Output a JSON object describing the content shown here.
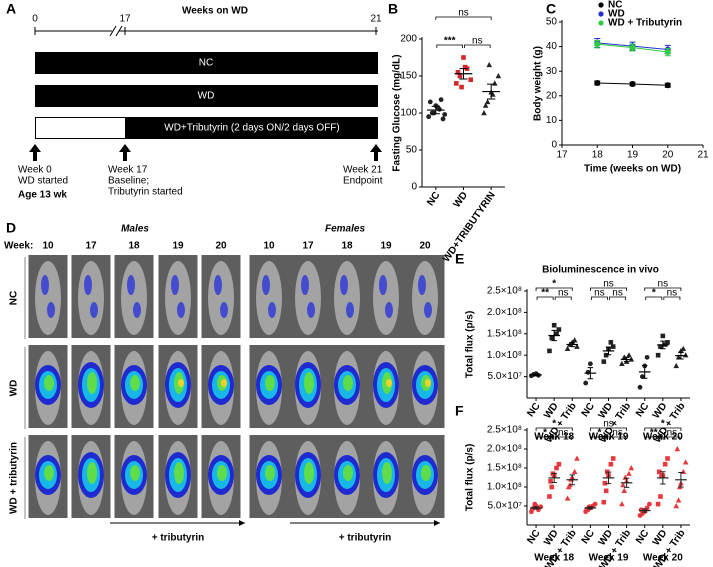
{
  "panel_a": {
    "label": "A",
    "title": "Weeks on WD",
    "ticks": [
      "0",
      "17",
      "21"
    ],
    "bars": [
      "NC",
      "WD",
      "WD+Tributyrin (2 days ON/2 days OFF)"
    ],
    "events": [
      {
        "lines": [
          "Week 0",
          "WD started"
        ],
        "note": "Age 13 wk"
      },
      {
        "lines": [
          "Week 17",
          "Baseline;",
          "Tributyrin started"
        ]
      },
      {
        "lines": [
          "Week 21",
          "Endpoint"
        ]
      }
    ]
  },
  "panel_d": {
    "label": "D",
    "week_label": "Week:",
    "sexes": [
      "Males",
      "Females"
    ],
    "weeks": [
      "10",
      "17",
      "18",
      "19",
      "20"
    ],
    "rows": [
      "NC",
      "WD",
      "WD + tributyrin"
    ],
    "treatment": "+ tributyrin"
  },
  "chart_data": [
    {
      "panel": "B",
      "type": "dot",
      "ylabel": "Fasting Glucose (mg/dL)",
      "categories": [
        "NC",
        "WD",
        "WD+TRIBUTYRIN"
      ],
      "values": [
        104,
        153,
        129
      ],
      "errors": [
        5,
        7,
        10
      ],
      "points": [
        [
          95,
          100,
          110,
          105,
          92,
          115,
          100,
          108,
          118,
          98
        ],
        [
          140,
          150,
          175,
          160,
          145,
          155,
          135,
          162
        ],
        [
          100,
          115,
          128,
          140,
          150,
          110,
          165,
          125
        ]
      ],
      "markers": [
        "circle",
        "square",
        "triangle"
      ],
      "point_colors": [
        "#222222",
        "#d62728",
        "#222222"
      ],
      "mean_color": "#000000",
      "ylim": [
        0,
        200
      ],
      "yticks": [
        0,
        50,
        100,
        150,
        200
      ],
      "comparisons": [
        {
          "pair": [
            0,
            1
          ],
          "label": "***"
        },
        {
          "pair": [
            1,
            2
          ],
          "label": "ns"
        },
        {
          "pair": [
            0,
            2
          ],
          "label": "ns"
        }
      ]
    },
    {
      "panel": "C",
      "type": "line",
      "xlabel": "Time (weeks on WD)",
      "ylabel": "Body weight (g)",
      "x": [
        18,
        19,
        20
      ],
      "series": [
        {
          "name": "NC",
          "color": "#000000",
          "values": [
            25.2,
            24.8,
            24.3
          ],
          "errors": [
            0.8,
            0.7,
            0.8
          ]
        },
        {
          "name": "WD",
          "color": "#2233cc",
          "values": [
            41.5,
            40.2,
            38.8
          ],
          "errors": [
            1.8,
            1.6,
            1.7
          ]
        },
        {
          "name": "WD + Tributyrin",
          "color": "#2ecc40",
          "values": [
            41,
            39.6,
            37.8
          ],
          "errors": [
            1.5,
            1.4,
            1.5
          ]
        }
      ],
      "xlim": [
        17,
        21
      ],
      "xticks": [
        17,
        18,
        19,
        20,
        21
      ],
      "ylim": [
        0,
        50
      ],
      "yticks": [
        0,
        10,
        20,
        30,
        40,
        50
      ],
      "legend": "top-right"
    },
    {
      "panel": "E",
      "type": "dot",
      "title": "Bioluminescence in vivo",
      "ylabel": "Total flux (p/s)",
      "categories": [
        "NC",
        "WD",
        "WD + Trib",
        "NC",
        "WD",
        "WD + Trib",
        "NC",
        "WD",
        "WD + Trib"
      ],
      "groups": [
        "Week 18",
        "Week 19",
        "Week 20"
      ],
      "values": [
        54000000,
        146000000,
        125000000,
        58000000,
        110000000,
        90000000,
        61000000,
        124000000,
        99000000
      ],
      "errors": [
        2000000,
        12000000,
        5000000,
        13000000,
        9000000,
        5000000,
        15000000,
        9000000,
        8000000
      ],
      "points": [
        [
          52000000,
          55000000,
          57000000,
          53000000
        ],
        [
          110000000,
          140000000,
          170000000,
          150000000,
          160000000
        ],
        [
          115000000,
          125000000,
          130000000,
          135000000,
          120000000
        ],
        [
          35000000,
          60000000,
          80000000
        ],
        [
          85000000,
          100000000,
          115000000,
          130000000,
          120000000
        ],
        [
          80000000,
          95000000,
          85000000,
          100000000,
          90000000
        ],
        [
          25000000,
          50000000,
          75000000,
          95000000
        ],
        [
          100000000,
          120000000,
          145000000,
          125000000,
          130000000
        ],
        [
          75000000,
          95000000,
          110000000,
          115000000,
          100000000
        ]
      ],
      "markers": [
        "circle",
        "square",
        "triangle",
        "circle",
        "square",
        "triangle",
        "circle",
        "square",
        "triangle"
      ],
      "point_colors": [
        "#222222",
        "#222222",
        "#222222",
        "#222222",
        "#222222",
        "#222222",
        "#222222",
        "#222222",
        "#222222"
      ],
      "mean_color": "#000000",
      "ylim": [
        0,
        250000000
      ],
      "yticks": [
        {
          "value": 50000000,
          "label": "5.0×10⁷"
        },
        {
          "value": 100000000,
          "label": "1.0×10⁸"
        },
        {
          "value": 150000000,
          "label": "1.5×10⁸"
        },
        {
          "value": 200000000,
          "label": "2.0×10⁸"
        },
        {
          "value": 250000000,
          "label": "2.5×10⁸"
        }
      ],
      "comparisons": [
        {
          "pair": [
            0,
            2
          ],
          "label": "*"
        },
        {
          "pair": [
            0,
            1
          ],
          "label": "**"
        },
        {
          "pair": [
            1,
            2
          ],
          "label": "ns"
        },
        {
          "pair": [
            3,
            5
          ],
          "label": "ns"
        },
        {
          "pair": [
            3,
            4
          ],
          "label": "ns"
        },
        {
          "pair": [
            4,
            5
          ],
          "label": "ns"
        },
        {
          "pair": [
            6,
            8
          ],
          "label": "ns"
        },
        {
          "pair": [
            6,
            7
          ],
          "label": "*"
        },
        {
          "pair": [
            7,
            8
          ],
          "label": "ns"
        }
      ]
    },
    {
      "panel": "F",
      "type": "dot",
      "ylabel": "Total flux (p/s)",
      "categories": [
        "NC",
        "WD",
        "WD + Trib",
        "NC",
        "WD",
        "WD + Trib",
        "NC",
        "WD",
        "WD + Trib"
      ],
      "groups": [
        "Week 18",
        "Week 19",
        "Week 20"
      ],
      "values": [
        45000000,
        124000000,
        119000000,
        45000000,
        124000000,
        111000000,
        38000000,
        124000000,
        119000000
      ],
      "errors": [
        3000000,
        12000000,
        13000000,
        3000000,
        15000000,
        12000000,
        4000000,
        16000000,
        19000000
      ],
      "points": [
        [
          35000000,
          45000000,
          50000000,
          40000000,
          48000000,
          42000000,
          55000000
        ],
        [
          75000000,
          100000000,
          130000000,
          150000000,
          160000000,
          115000000,
          135000000
        ],
        [
          70000000,
          105000000,
          125000000,
          140000000,
          175000000,
          100000000,
          120000000
        ],
        [
          35000000,
          40000000,
          45000000,
          50000000,
          55000000,
          42000000,
          48000000
        ],
        [
          60000000,
          90000000,
          130000000,
          160000000,
          175000000,
          110000000,
          140000000
        ],
        [
          55000000,
          90000000,
          115000000,
          135000000,
          150000000,
          105000000,
          125000000
        ],
        [
          25000000,
          30000000,
          35000000,
          45000000,
          55000000,
          40000000,
          38000000
        ],
        [
          55000000,
          75000000,
          130000000,
          160000000,
          175000000,
          140000000,
          130000000
        ],
        [
          50000000,
          65000000,
          110000000,
          140000000,
          165000000,
          200000000,
          100000000
        ]
      ],
      "markers": [
        "circle",
        "square",
        "triangle",
        "circle",
        "square",
        "triangle",
        "circle",
        "square",
        "triangle"
      ],
      "point_colors": [
        "#e8383d",
        "#e8383d",
        "#e8383d",
        "#e8383d",
        "#e8383d",
        "#e8383d",
        "#e8383d",
        "#e8383d",
        "#e8383d"
      ],
      "mean_color": "#222222",
      "ylim": [
        0,
        250000000
      ],
      "yticks": [
        {
          "value": 50000000,
          "label": "5.0×10⁷"
        },
        {
          "value": 100000000,
          "label": "1.0×10⁸"
        },
        {
          "value": 150000000,
          "label": "1.5×10⁸"
        },
        {
          "value": 200000000,
          "label": "2.0×10⁸"
        },
        {
          "value": 250000000,
          "label": "2.5×10⁸"
        }
      ],
      "comparisons": [
        {
          "pair": [
            0,
            2
          ],
          "label": "*"
        },
        {
          "pair": [
            0,
            1
          ],
          "label": "*"
        },
        {
          "pair": [
            1,
            2
          ],
          "label": "ns"
        },
        {
          "pair": [
            3,
            5
          ],
          "label": "ns"
        },
        {
          "pair": [
            3,
            4
          ],
          "label": "*"
        },
        {
          "pair": [
            4,
            5
          ],
          "label": "ns"
        },
        {
          "pair": [
            6,
            8
          ],
          "label": "*"
        },
        {
          "pair": [
            6,
            7
          ],
          "label": "**"
        },
        {
          "pair": [
            7,
            8
          ],
          "label": "ns"
        }
      ]
    }
  ]
}
